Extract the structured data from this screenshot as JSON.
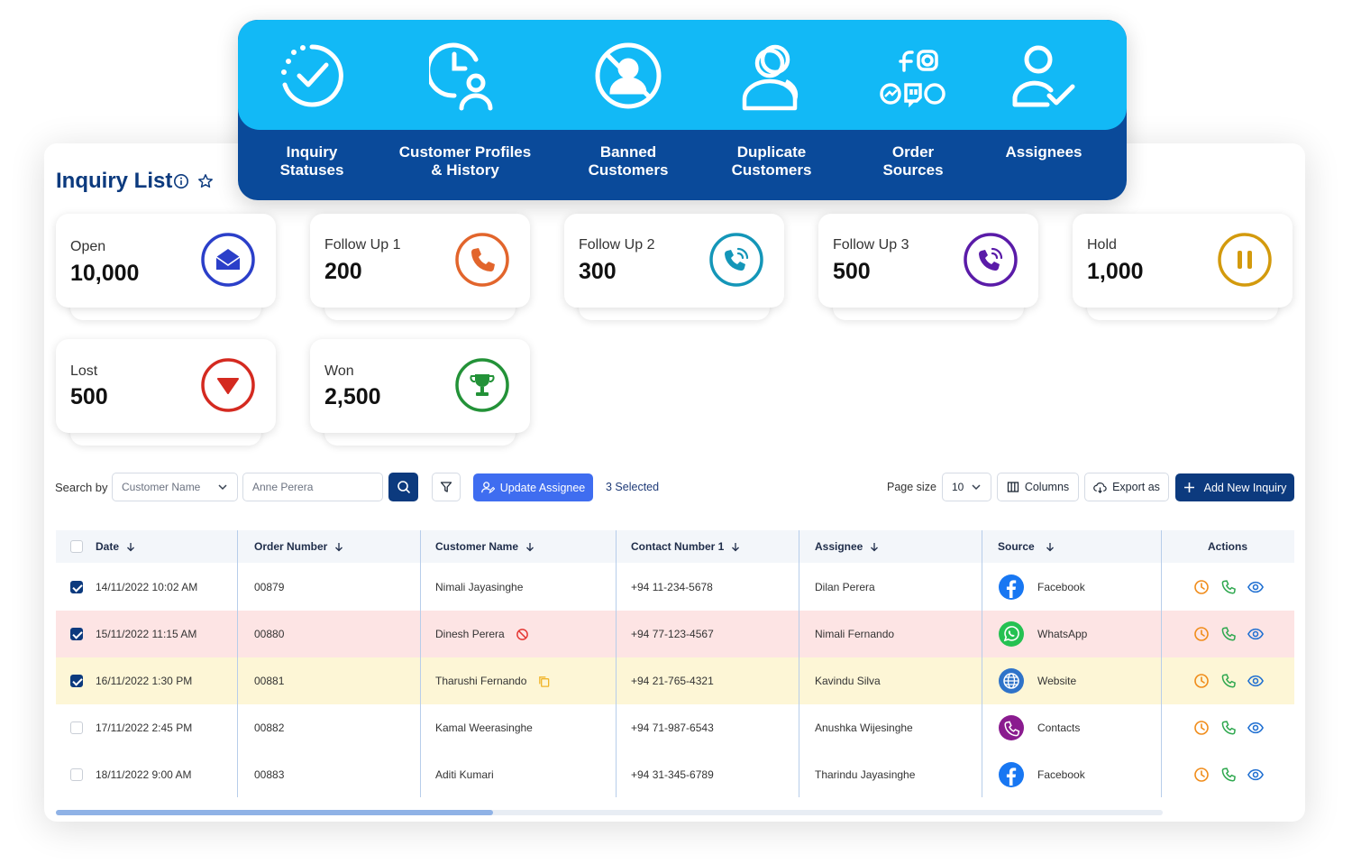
{
  "banner": {
    "features": [
      {
        "label": "Inquiry\nStatuses",
        "icon": "clock-check-icon"
      },
      {
        "label": "Customer Profiles\n& History",
        "icon": "user-clock-icon"
      },
      {
        "label": "Banned\nCustomers",
        "icon": "user-banned-icon"
      },
      {
        "label": "Duplicate\nCustomers",
        "icon": "duplicate-user-icon"
      },
      {
        "label": "Order\nSources",
        "icon": "social-sources-icon"
      },
      {
        "label": "Assignees",
        "icon": "user-check-icon"
      }
    ]
  },
  "header": {
    "title": "Inquiry List"
  },
  "stats": [
    {
      "label": "Open",
      "value": "10,000",
      "icon": "envelope-icon",
      "color": "#2b3fc9"
    },
    {
      "label": "Follow Up 1",
      "value": "200",
      "icon": "phone-icon",
      "color": "#e2652c"
    },
    {
      "label": "Follow Up 2",
      "value": "300",
      "icon": "phone-ring-icon",
      "color": "#1496b8"
    },
    {
      "label": "Follow Up 3",
      "value": "500",
      "icon": "phone-ring-icon",
      "color": "#5a1ba8"
    },
    {
      "label": "Hold",
      "value": "1,000",
      "icon": "pause-icon",
      "color": "#d39a0d"
    },
    {
      "label": "Lost",
      "value": "500",
      "icon": "triangle-down-icon",
      "color": "#d42a20"
    },
    {
      "label": "Won",
      "value": "2,500",
      "icon": "trophy-icon",
      "color": "#239238"
    }
  ],
  "toolbar": {
    "search_by_label": "Search by",
    "search_field": "Customer Name",
    "search_value": "Anne Perera",
    "update_assignee_label": "Update Assignee",
    "selected_count": "3 Selected",
    "page_size_label": "Page size",
    "page_size_value": "10",
    "columns_label": "Columns",
    "export_label": "Export as",
    "add_label": "Add New Inquiry"
  },
  "table": {
    "columns": [
      "Date",
      "Order Number",
      "Customer Name",
      "Contact Number 1",
      "Assignee",
      "Source",
      "Actions"
    ],
    "rows": [
      {
        "checked": true,
        "date": "14/11/2022 10:02 AM",
        "order": "00879",
        "customer": "Nimali Jayasinghe",
        "contact": "+94 11-234-5678",
        "assignee": "Dilan Perera",
        "source": "Facebook",
        "flag": "",
        "bg": "#ffffff"
      },
      {
        "checked": true,
        "date": "15/11/2022 11:15 AM",
        "order": "00880",
        "customer": "Dinesh Perera",
        "contact": "+94 77-123-4567",
        "assignee": "Nimali Fernando",
        "source": "WhatsApp",
        "flag": "banned",
        "bg": "#fde4e4"
      },
      {
        "checked": true,
        "date": "16/11/2022 1:30 PM",
        "order": "00881",
        "customer": "Tharushi Fernando",
        "contact": "+94 21-765-4321",
        "assignee": "Kavindu Silva",
        "source": "Website",
        "flag": "duplicate",
        "bg": "#fdf6d6"
      },
      {
        "checked": false,
        "date": "17/11/2022 2:45 PM",
        "order": "00882",
        "customer": "Kamal Weerasinghe",
        "contact": "+94 71-987-6543",
        "assignee": "Anushka Wijesinghe",
        "source": "Contacts",
        "flag": "",
        "bg": "#ffffff"
      },
      {
        "checked": false,
        "date": "18/11/2022 9:00 AM",
        "order": "00883",
        "customer": "Aditi Kumari",
        "contact": "+94 31-345-6789",
        "assignee": "Tharindu Jayasinghe",
        "source": "Facebook",
        "flag": "",
        "bg": "#ffffff"
      }
    ]
  },
  "colors": {
    "primary": "#0c3a7e",
    "banner_light": "#12b9f6",
    "banner_dark": "#0a4a9a",
    "update_btn": "#3f6df0"
  }
}
